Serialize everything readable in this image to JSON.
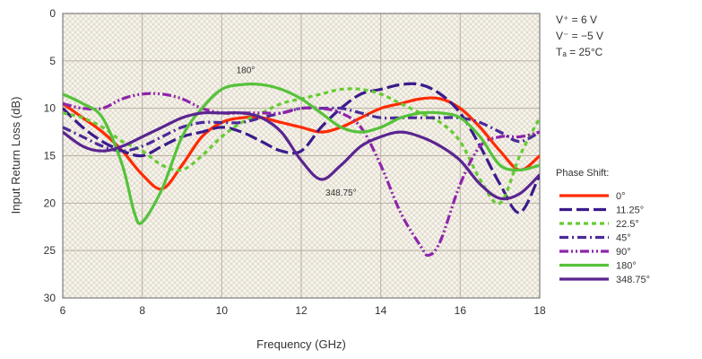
{
  "chart_data": {
    "type": "line",
    "title": "",
    "xlabel": "Frequency (GHz)",
    "ylabel": "Input Return Loss (dB)",
    "xlim": [
      6,
      18
    ],
    "ylim": [
      0,
      30
    ],
    "y_inverted": true,
    "grid": true,
    "x_ticks": [
      6,
      8,
      10,
      12,
      14,
      16,
      18
    ],
    "y_ticks": [
      0,
      5,
      10,
      15,
      20,
      25,
      30
    ],
    "conditions": [
      "V⁺ = 6 V",
      "V⁻ = −5 V",
      "Tₐ = 25°C"
    ],
    "legend_title": "Phase Shift:",
    "legend_position": "right",
    "annotations": [
      {
        "text": "180°",
        "x": 10.6,
        "y": 6.3
      },
      {
        "text": "348.75°",
        "x": 13.0,
        "y": 19.2
      }
    ],
    "series": [
      {
        "name": "0°",
        "color": "#ff2a00",
        "dash": "solid",
        "x": [
          6,
          6.5,
          7,
          7.5,
          8,
          8.5,
          9,
          9.5,
          10,
          10.5,
          11,
          11.5,
          12,
          12.5,
          13,
          13.5,
          14,
          14.5,
          15,
          15.5,
          16,
          16.5,
          17,
          17.5,
          18
        ],
        "y": [
          9.5,
          11,
          12.5,
          14.5,
          17,
          18.5,
          16,
          13,
          11.5,
          11,
          11,
          11.5,
          12,
          12.5,
          12,
          11,
          10,
          9.5,
          9,
          9,
          10,
          12,
          14.5,
          16.5,
          15
        ]
      },
      {
        "name": "11.25°",
        "color": "#3a1a8c",
        "dash": "long",
        "x": [
          6,
          6.5,
          7,
          7.5,
          8,
          8.5,
          9,
          9.5,
          10,
          10.5,
          11,
          11.5,
          12,
          12.5,
          13,
          13.5,
          14,
          14.5,
          15,
          15.5,
          16,
          16.5,
          17,
          17.5,
          18
        ],
        "y": [
          10,
          12,
          13.5,
          14.5,
          15,
          14,
          13,
          12.5,
          12,
          12.5,
          13.5,
          14.5,
          14.5,
          12,
          10,
          8.5,
          8,
          7.5,
          7.5,
          8.5,
          10.5,
          14,
          18,
          21,
          17
        ]
      },
      {
        "name": "22.5°",
        "color": "#66cc33",
        "dash": "short",
        "x": [
          6,
          6.5,
          7,
          7.5,
          8,
          8.5,
          9,
          9.5,
          10,
          10.5,
          11,
          11.5,
          12,
          12.5,
          13,
          13.5,
          14,
          14.5,
          15,
          15.5,
          16,
          16.5,
          17,
          17.5,
          18
        ],
        "y": [
          10.5,
          11,
          12,
          13.5,
          14.5,
          16,
          16.5,
          15,
          13,
          11.5,
          10.5,
          9.5,
          9,
          8.5,
          8,
          8,
          8.5,
          9.5,
          10.5,
          11.5,
          13.5,
          17.5,
          20,
          15,
          11
        ]
      },
      {
        "name": "45°",
        "color": "#4b2a99",
        "dash": "dashdot",
        "x": [
          6,
          6.5,
          7,
          7.5,
          8,
          8.5,
          9,
          9.5,
          10,
          10.5,
          11,
          11.5,
          12,
          12.5,
          13,
          13.5,
          14,
          14.5,
          15,
          15.5,
          16,
          16.5,
          17,
          17.5,
          18
        ],
        "y": [
          12,
          13,
          14,
          14.5,
          14,
          13,
          12,
          11.5,
          11.5,
          11.5,
          11,
          10.5,
          10,
          10,
          10,
          10.5,
          11,
          11,
          11,
          11,
          11,
          11.5,
          12.5,
          13.5,
          12.5
        ]
      },
      {
        "name": "90°",
        "color": "#8e24aa",
        "dash": "dashdotdot",
        "x": [
          6,
          6.5,
          7,
          7.5,
          8,
          8.5,
          9,
          9.5,
          10,
          10.5,
          11,
          11.5,
          12,
          12.5,
          13,
          13.5,
          14,
          14.5,
          15,
          15.2,
          15.5,
          16,
          16.5,
          17,
          17.5,
          18
        ],
        "y": [
          9.5,
          10,
          10,
          9,
          8.5,
          8.5,
          9,
          10,
          10.5,
          10.5,
          10.5,
          10.5,
          10,
          10,
          10.5,
          12,
          16,
          21,
          24.5,
          25.5,
          24,
          18,
          14,
          13,
          13,
          12.5
        ]
      },
      {
        "name": "180°",
        "color": "#55c23a",
        "dash": "solid",
        "x": [
          6,
          6.5,
          7,
          7.5,
          7.8,
          8,
          8.5,
          9,
          9.5,
          10,
          10.5,
          11,
          11.5,
          12,
          12.5,
          13,
          13.5,
          14,
          14.5,
          15,
          15.5,
          16,
          16.5,
          17,
          17.5,
          18
        ],
        "y": [
          8.5,
          9.5,
          11,
          16,
          21,
          22,
          18.5,
          13,
          10,
          8,
          7.5,
          7.5,
          8,
          9,
          10.5,
          12,
          12.5,
          12,
          11,
          10.5,
          10.5,
          11,
          13,
          16,
          16.5,
          16
        ]
      },
      {
        "name": "348.75°",
        "color": "#5a2590",
        "dash": "solid",
        "x": [
          6,
          6.5,
          7,
          7.5,
          8,
          8.5,
          9,
          9.5,
          10,
          10.5,
          11,
          11.5,
          12,
          12.5,
          13,
          13.5,
          14,
          14.5,
          15,
          15.5,
          16,
          16.5,
          17,
          17.5,
          18
        ],
        "y": [
          12.5,
          14,
          14.5,
          14,
          13,
          12,
          11,
          10.5,
          10.5,
          10.5,
          11,
          12.5,
          15.5,
          17.5,
          16,
          14,
          13,
          12.5,
          13,
          14,
          15.5,
          18,
          19.5,
          19,
          17
        ]
      }
    ]
  }
}
